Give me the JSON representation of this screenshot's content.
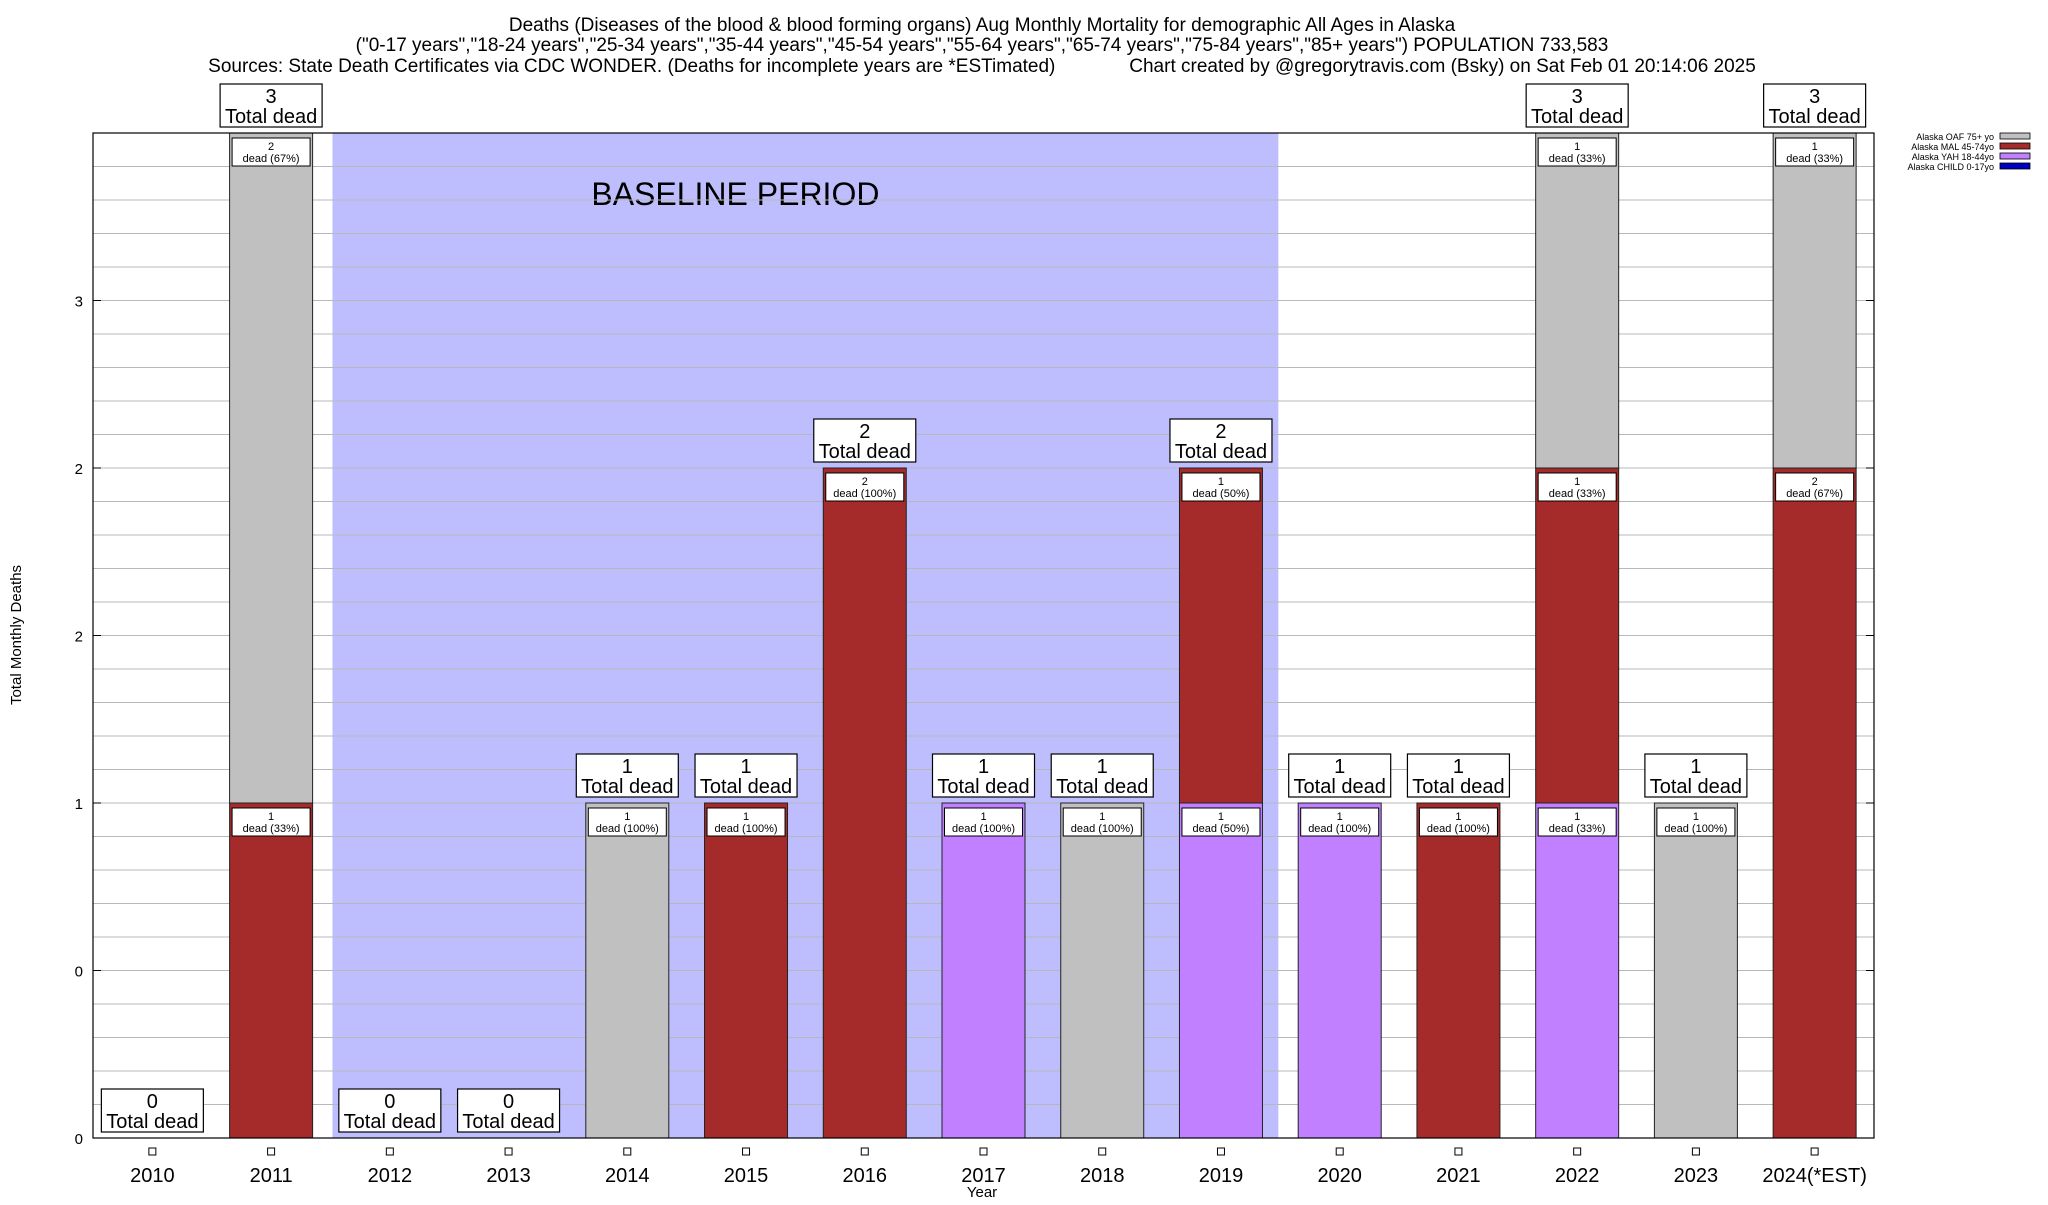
{
  "chart_data": {
    "type": "bar",
    "title_lines": [
      "Deaths (Diseases of the blood & blood forming organs) Aug Monthly Mortality for demographic All Ages in Alaska",
      "(\"0-17 years\",\"18-24 years\",\"25-34 years\",\"35-44 years\",\"45-54 years\",\"55-64 years\",\"65-74 years\",\"75-84 years\",\"85+ years\") POPULATION 733,583",
      "Sources: State Death Certificates via CDC WONDER. (Deaths for incomplete years are *ESTimated)              Chart created by @gregorytravis.com (Bsky) on Sat Feb 01 20:14:06 2025"
    ],
    "xlabel": "Year",
    "ylabel": "Total Monthly Deaths",
    "ylim": [
      0,
      3
    ],
    "y_tick_labels": [
      "0",
      "0",
      "1",
      "2",
      "2",
      "3"
    ],
    "y_tick_values": [
      0,
      0.5,
      1,
      1.5,
      2,
      2.5,
      3
    ],
    "grid": true,
    "legend_placement": "top-right",
    "baseline_label": "BASELINE PERIOD",
    "baseline_range": [
      "2012",
      "2019"
    ],
    "baseline_color": "#bebefe",
    "categories": [
      "2010",
      "2011",
      "2012",
      "2013",
      "2014",
      "2015",
      "2016",
      "2017",
      "2018",
      "2019",
      "2020",
      "2021",
      "2022",
      "2023",
      "2024(*EST)"
    ],
    "series": [
      {
        "name": "Alaska CHILD 0-17yo",
        "color": "#0000c0",
        "values": [
          0,
          0,
          0,
          0,
          0,
          0,
          0,
          0,
          0,
          0,
          0,
          0,
          0,
          0,
          0
        ]
      },
      {
        "name": "Alaska YAH 18-44yo",
        "color": "#c080ff",
        "values": [
          0,
          0,
          0,
          0,
          0,
          0,
          0,
          1,
          0,
          1,
          1,
          0,
          1,
          0,
          0
        ]
      },
      {
        "name": "Alaska MAL 45-74yo",
        "color": "#a52a2a",
        "values": [
          0,
          1,
          0,
          0,
          0,
          1,
          2,
          0,
          0,
          1,
          0,
          1,
          1,
          0,
          2
        ]
      },
      {
        "name": "Alaska OAF 75+ yo",
        "color": "#c0c0c0",
        "values": [
          0,
          2,
          0,
          0,
          1,
          0,
          0,
          0,
          1,
          0,
          0,
          0,
          1,
          1,
          1
        ]
      }
    ],
    "totals": [
      0,
      3,
      0,
      0,
      1,
      1,
      2,
      1,
      1,
      2,
      1,
      1,
      3,
      1,
      3
    ],
    "total_suffix": "Total dead",
    "segment_labels": [
      [],
      [
        {
          "count": "1",
          "text": "dead (33%)"
        },
        {
          "count": "2",
          "text": "dead (67%)"
        }
      ],
      [],
      [],
      [
        {
          "count": "1",
          "text": "dead (100%)"
        }
      ],
      [
        {
          "count": "1",
          "text": "dead (100%)"
        }
      ],
      [
        {
          "count": "2",
          "text": "dead (100%)"
        }
      ],
      [
        {
          "count": "1",
          "text": "dead (100%)"
        }
      ],
      [
        {
          "count": "1",
          "text": "dead (100%)"
        }
      ],
      [
        {
          "count": "1",
          "text": "dead (50%)"
        },
        {
          "count": "1",
          "text": "dead (50%)"
        }
      ],
      [
        {
          "count": "1",
          "text": "dead (100%)"
        }
      ],
      [
        {
          "count": "1",
          "text": "dead (100%)"
        }
      ],
      [
        {
          "count": "1",
          "text": "dead (33%)"
        },
        {
          "count": "1",
          "text": "dead (33%)"
        },
        {
          "count": "1",
          "text": "dead (33%)"
        }
      ],
      [
        {
          "count": "1",
          "text": "dead (100%)"
        }
      ],
      [
        {
          "count": "2",
          "text": "dead (67%)"
        },
        {
          "count": "1",
          "text": "dead (33%)"
        }
      ]
    ],
    "legend_order": [
      "Alaska OAF 75+ yo",
      "Alaska MAL 45-74yo",
      "Alaska YAH 18-44yo",
      "Alaska CHILD 0-17yo"
    ]
  }
}
